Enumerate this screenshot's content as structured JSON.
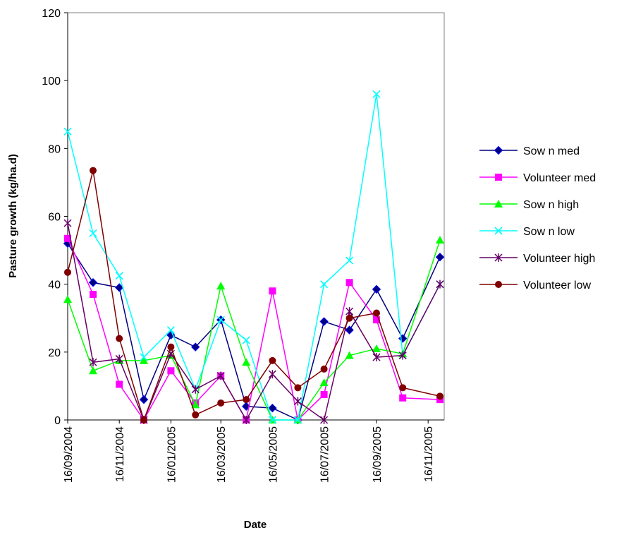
{
  "chart_data": {
    "type": "line",
    "title": "",
    "xlabel": "Date",
    "ylabel": "Pasture growth (kg/ha.d)",
    "ylim": [
      0,
      120
    ],
    "yticks": [
      0,
      20,
      40,
      60,
      80,
      100,
      120
    ],
    "xlim": [
      "2004-09-16",
      "2005-12-05"
    ],
    "xtick_dates": [
      "2004-09-16",
      "2004-11-16",
      "2005-01-16",
      "2005-03-16",
      "2005-05-16",
      "2005-07-16",
      "2005-09-16",
      "2005-11-16"
    ],
    "xtick_labels": [
      "16/09/2004",
      "16/11/2004",
      "16/01/2005",
      "16/03/2005",
      "16/05/2005",
      "16/07/2005",
      "16/09/2005",
      "16/11/2005"
    ],
    "grid": false,
    "legend_position": "right",
    "x": [
      "2004-09-16",
      "2004-10-16",
      "2004-11-16",
      "2004-12-15",
      "2005-01-16",
      "2005-02-14",
      "2005-03-16",
      "2005-04-15",
      "2005-05-16",
      "2005-06-15",
      "2005-07-16",
      "2005-08-15",
      "2005-09-16",
      "2005-10-17",
      "2005-11-30"
    ],
    "series": [
      {
        "name": "Sow n med",
        "color": "#000080",
        "marker": "diamond",
        "values": [
          52,
          40.5,
          39,
          6,
          25,
          21.5,
          29.5,
          4,
          3.5,
          0,
          29,
          26.5,
          38.5,
          24,
          48
        ]
      },
      {
        "name": "Volunteer med",
        "color": "#ff00ff",
        "marker": "square",
        "values": [
          53.5,
          37,
          10.5,
          0,
          14.5,
          5,
          13,
          0,
          38,
          0,
          7.5,
          40.5,
          29.5,
          6.5,
          6
        ]
      },
      {
        "name": "Sow n high",
        "color": "#00ff00",
        "marker": "triangle",
        "values": [
          35.5,
          14.5,
          17.5,
          17.5,
          19,
          4.5,
          39.5,
          17,
          0,
          0,
          11,
          19,
          21,
          19.5,
          53
        ]
      },
      {
        "name": "Sow n low",
        "color": "#00ffff",
        "marker": "x",
        "values": [
          85,
          55,
          42.5,
          18.5,
          26.5,
          9,
          29.5,
          23.5,
          0,
          0,
          40,
          47,
          96,
          19,
          40
        ]
      },
      {
        "name": "Volunteer high",
        "color": "#660066",
        "marker": "star",
        "values": [
          58,
          17,
          18,
          0,
          19.5,
          9,
          13,
          0,
          13.5,
          5.5,
          0,
          32,
          18.5,
          19,
          40
        ]
      },
      {
        "name": "Volunteer low",
        "color": "#800000",
        "marker": "circle",
        "values": [
          43.5,
          73.5,
          24,
          0,
          21.5,
          1.5,
          5,
          6,
          17.5,
          9.5,
          15,
          30,
          31.5,
          9.5,
          7
        ]
      }
    ]
  }
}
